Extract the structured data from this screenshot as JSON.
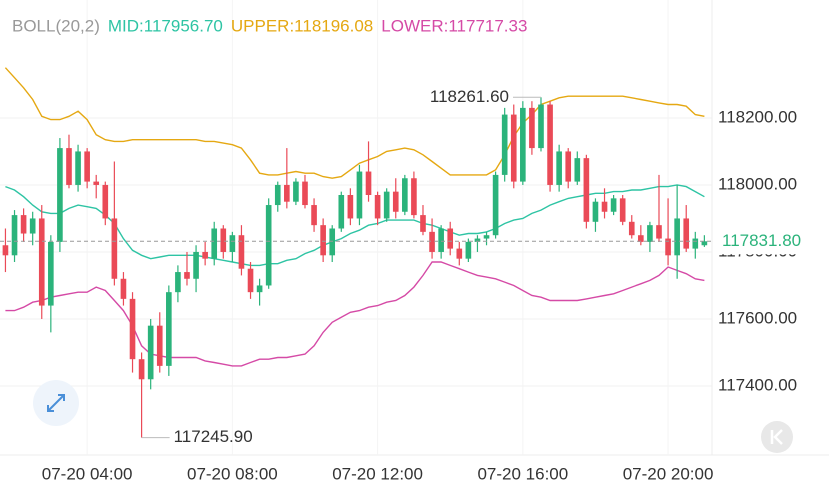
{
  "chart_data": {
    "type": "candlestick",
    "indicator": "BOLL(20,2)",
    "xlim": [
      1.6,
      21.21
    ],
    "ylim": [
      117194,
      118552
    ],
    "xticks": [
      {
        "value": 4,
        "label": "07-20 04:00"
      },
      {
        "value": 8,
        "label": "07-20 08:00"
      },
      {
        "value": 12,
        "label": "07-20 12:00"
      },
      {
        "value": 16,
        "label": "07-20 16:00"
      },
      {
        "value": 20,
        "label": "07-20 20:00"
      }
    ],
    "yticks": [
      {
        "value": 117400,
        "label": "117400.00"
      },
      {
        "value": 117600,
        "label": "117600.00"
      },
      {
        "value": 117800,
        "label": "117800.00"
      },
      {
        "value": 118000,
        "label": "118000.00"
      },
      {
        "value": 118200,
        "label": "118200.00"
      }
    ],
    "grid": true,
    "up_color": "#2bb37b",
    "down_color": "#ea4a57",
    "x": [
      1.75,
      2,
      2.25,
      2.5,
      2.75,
      3,
      3.25,
      3.5,
      3.75,
      4,
      4.25,
      4.5,
      4.75,
      5,
      5.25,
      5.5,
      5.75,
      6,
      6.25,
      6.5,
      6.75,
      7,
      7.25,
      7.5,
      7.75,
      8,
      8.25,
      8.5,
      8.75,
      9,
      9.25,
      9.5,
      9.75,
      10,
      10.25,
      10.5,
      10.75,
      11,
      11.25,
      11.5,
      11.75,
      12,
      12.25,
      12.5,
      12.75,
      13,
      13.25,
      13.5,
      13.75,
      14,
      14.25,
      14.5,
      14.75,
      15,
      15.25,
      15.5,
      15.75,
      16,
      16.25,
      16.5,
      16.75,
      17,
      17.25,
      17.5,
      17.75,
      18,
      18.25,
      18.5,
      18.75,
      19,
      19.25,
      19.5,
      19.75,
      20,
      20.25,
      20.5,
      20.75,
      21
    ],
    "open": [
      117820,
      117790,
      117910,
      117855,
      117900,
      117640,
      117830,
      118110,
      118000,
      118100,
      118010,
      118000,
      117900,
      117720,
      117660,
      117480,
      117420,
      117580,
      117460,
      117680,
      117740,
      117720,
      117800,
      117780,
      117870,
      117800,
      117850,
      117750,
      117680,
      117700,
      117940,
      118000,
      117950,
      118010,
      117940,
      117880,
      117790,
      117870,
      117970,
      117900,
      118040,
      117970,
      117900,
      117980,
      117920,
      118020,
      117910,
      117860,
      117800,
      117870,
      117810,
      117780,
      117830,
      117840,
      117850,
      118030,
      118210,
      118010,
      118230,
      118110,
      118240,
      118000,
      118100,
      118010,
      118080,
      117890,
      117950,
      117920,
      117960,
      117890,
      117850,
      117830,
      117880,
      117840,
      117790,
      117900,
      117810,
      117820
    ],
    "high": [
      117870,
      117925,
      117930,
      117920,
      117940,
      117850,
      118140,
      118150,
      118120,
      118110,
      118030,
      118010,
      118070,
      117740,
      117680,
      117500,
      117600,
      117620,
      117700,
      117760,
      117800,
      117820,
      117830,
      117890,
      117880,
      117860,
      117880,
      117770,
      117720,
      117960,
      118010,
      118110,
      118020,
      118030,
      117960,
      117900,
      117880,
      117980,
      117990,
      118060,
      118130,
      117980,
      117990,
      118020,
      118030,
      118040,
      117940,
      117900,
      117880,
      117890,
      117830,
      117840,
      117850,
      117860,
      118040,
      118230,
      118240,
      118250,
      118250,
      118261.6,
      118250,
      118120,
      118110,
      118100,
      118090,
      117960,
      117990,
      117970,
      117970,
      117910,
      117880,
      117890,
      118030,
      117960,
      118000,
      117940,
      117860,
      117850
    ],
    "low": [
      117740,
      117770,
      117830,
      117820,
      117600,
      117560,
      117800,
      117990,
      117980,
      117990,
      117960,
      117880,
      117700,
      117640,
      117440,
      117245.9,
      117390,
      117440,
      117430,
      117650,
      117700,
      117680,
      117760,
      117760,
      117780,
      117770,
      117730,
      117660,
      117640,
      117690,
      117920,
      117930,
      117940,
      117930,
      117860,
      117770,
      117770,
      117860,
      117880,
      117880,
      117950,
      117880,
      117890,
      117900,
      117910,
      117900,
      117850,
      117780,
      117780,
      117790,
      117760,
      117770,
      117800,
      117820,
      117840,
      118010,
      117990,
      118000,
      118090,
      118100,
      117980,
      117980,
      117990,
      118000,
      117870,
      117860,
      117900,
      117910,
      117880,
      117840,
      117820,
      117800,
      117830,
      117760,
      117720,
      117800,
      117780,
      117815
    ],
    "close": [
      117790,
      117910,
      117855,
      117900,
      117640,
      117830,
      118110,
      118000,
      118100,
      118010,
      118000,
      117900,
      117720,
      117660,
      117480,
      117420,
      117580,
      117460,
      117680,
      117740,
      117720,
      117800,
      117780,
      117870,
      117800,
      117850,
      117750,
      117680,
      117700,
      117940,
      118000,
      117950,
      118010,
      117940,
      117880,
      117790,
      117870,
      117970,
      117900,
      118040,
      117970,
      117900,
      117980,
      117920,
      118020,
      117910,
      117860,
      117800,
      117870,
      117810,
      117780,
      117830,
      117840,
      117850,
      118030,
      118210,
      118010,
      118230,
      118110,
      118240,
      118000,
      118100,
      118010,
      118080,
      117890,
      117950,
      117920,
      117960,
      117890,
      117850,
      117830,
      117880,
      117840,
      117790,
      117900,
      117810,
      117840,
      117831.8
    ],
    "series": [
      {
        "name": "MID:117956.70",
        "color": "#2ec4a4",
        "values": [
          117995,
          117985,
          117965,
          117940,
          117920,
          117915,
          117915,
          117930,
          117940,
          117935,
          117930,
          117910,
          117885,
          117840,
          117805,
          117790,
          117780,
          117785,
          117790,
          117790,
          117790,
          117790,
          117785,
          117780,
          117775,
          117770,
          117765,
          117760,
          117760,
          117765,
          117765,
          117775,
          117780,
          117795,
          117805,
          117820,
          117830,
          117840,
          117855,
          117865,
          117880,
          117885,
          117895,
          117895,
          117895,
          117895,
          117885,
          117880,
          117870,
          117860,
          117850,
          117855,
          117855,
          117860,
          117870,
          117885,
          117895,
          117900,
          117915,
          117925,
          117940,
          117950,
          117960,
          117965,
          117970,
          117975,
          117975,
          117980,
          117980,
          117985,
          117985,
          117990,
          117995,
          117995,
          118000,
          117995,
          117980,
          117965
        ]
      },
      {
        "name": "UPPER:118196.08",
        "color": "#e5a812",
        "values": [
          118350,
          118320,
          118290,
          118255,
          118205,
          118195,
          118195,
          118205,
          118220,
          118195,
          118150,
          118135,
          118130,
          118130,
          118135,
          118135,
          118135,
          118135,
          118135,
          118135,
          118135,
          118135,
          118130,
          118130,
          118125,
          118120,
          118110,
          118075,
          118035,
          118030,
          118030,
          118035,
          118040,
          118035,
          118035,
          118025,
          118020,
          118025,
          118045,
          118065,
          118075,
          118085,
          118100,
          118105,
          118110,
          118105,
          118090,
          118070,
          118050,
          118030,
          118030,
          118030,
          118030,
          118030,
          118045,
          118090,
          118145,
          118185,
          118210,
          118240,
          118250,
          118260,
          118265,
          118265,
          118265,
          118265,
          118265,
          118265,
          118265,
          118260,
          118255,
          118250,
          118245,
          118240,
          118240,
          118235,
          118210,
          118205
        ]
      },
      {
        "name": "LOWER:117717.33",
        "color": "#d54aa6",
        "values": [
          117625,
          117625,
          117635,
          117650,
          117655,
          117665,
          117670,
          117675,
          117680,
          117680,
          117695,
          117685,
          117655,
          117625,
          117580,
          117520,
          117495,
          117490,
          117485,
          117485,
          117485,
          117485,
          117475,
          117470,
          117465,
          117460,
          117460,
          117470,
          117480,
          117480,
          117485,
          117485,
          117490,
          117495,
          117520,
          117560,
          117590,
          117605,
          117620,
          117625,
          117635,
          117640,
          117650,
          117655,
          117670,
          117695,
          117730,
          117770,
          117770,
          117760,
          117750,
          117740,
          117730,
          117725,
          117720,
          117710,
          117700,
          117685,
          117670,
          117665,
          117655,
          117655,
          117655,
          117655,
          117660,
          117665,
          117670,
          117675,
          117685,
          117695,
          117705,
          117715,
          117730,
          117755,
          117745,
          117735,
          117720,
          117715
        ]
      }
    ],
    "annotations": [
      {
        "x": 16.5,
        "value": 118261.6,
        "label": "118261.60",
        "side": "left"
      },
      {
        "x": 5.5,
        "value": 117245.9,
        "label": "117245.90",
        "side": "right"
      }
    ],
    "last_price": {
      "value": 117831.8,
      "label": "117831.80"
    }
  }
}
